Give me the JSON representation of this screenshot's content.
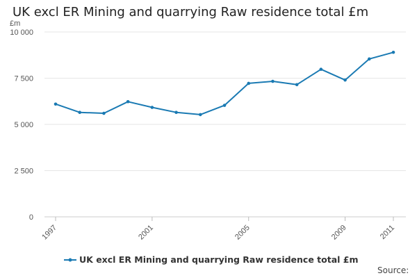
{
  "colors": {
    "series": "#1a7ab3",
    "gridline": "#e6e6e6",
    "axis_text": "#555555"
  },
  "source_label": "Source:",
  "chart_data": {
    "type": "line",
    "title": "UK excl ER Mining and quarrying Raw residence total £m",
    "ylabel": "£m",
    "xlabel": "",
    "ylim": [
      0,
      10000
    ],
    "xlim": [
      1997,
      2011
    ],
    "y_ticks": [
      0,
      2500,
      5000,
      7500,
      10000
    ],
    "y_tick_labels": [
      "0",
      "2 500",
      "5 000",
      "7 500",
      "10 000"
    ],
    "x_ticks": [
      1997,
      2001,
      2005,
      2009,
      2011
    ],
    "x_tick_labels": [
      "1997",
      "2001",
      "2005",
      "2009",
      "2011"
    ],
    "grid": true,
    "legend_position": "bottom",
    "series": [
      {
        "name": "UK excl ER Mining and quarrying Raw residence total £m",
        "x": [
          1997,
          1998,
          1999,
          2000,
          2001,
          2002,
          2003,
          2004,
          2005,
          2006,
          2007,
          2008,
          2009,
          2010,
          2011
        ],
        "values": [
          6100,
          5650,
          5600,
          6230,
          5920,
          5650,
          5530,
          6030,
          7220,
          7330,
          7150,
          7980,
          7400,
          8540,
          8900
        ]
      }
    ]
  }
}
